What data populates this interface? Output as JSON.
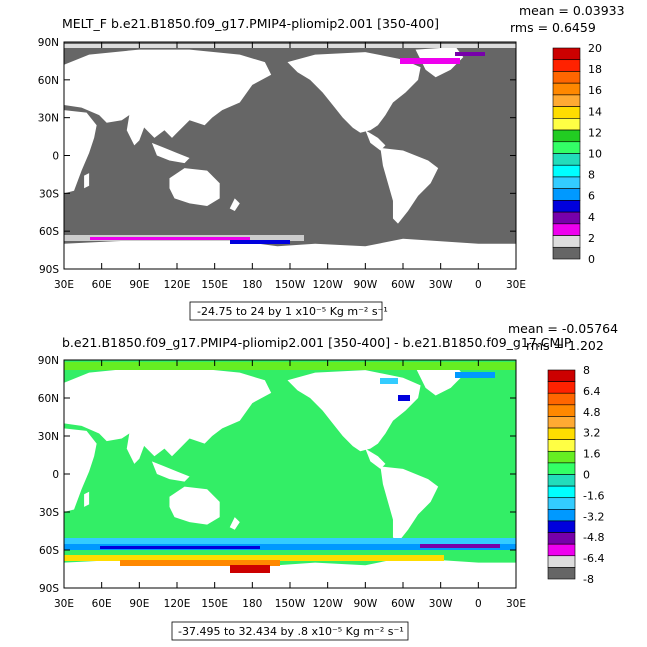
{
  "chart_data": [
    {
      "type": "heatmap",
      "title": "MELT_F b.e21.B1850.f09_g17.PMIP4-pliomip2.001 [350-400]",
      "stats": {
        "mean": "mean = 0.03933",
        "rms": "rms = 0.6459"
      },
      "x_ticks": [
        "30E",
        "60E",
        "90E",
        "120E",
        "150E",
        "180",
        "150W",
        "120W",
        "90W",
        "60W",
        "30W",
        "0",
        "30E"
      ],
      "y_ticks": [
        "90N",
        "60N",
        "30N",
        "0",
        "30S",
        "60S",
        "90S"
      ],
      "colorbar": {
        "labels": [
          "20",
          "18",
          "16",
          "14",
          "12",
          "10",
          "8",
          "6",
          "4",
          "2",
          "0"
        ],
        "colors": [
          "#cc0000",
          "#ff2200",
          "#ff6600",
          "#ff8800",
          "#ffaa33",
          "#ffdd00",
          "#ffff44",
          "#22cc22",
          "#33ff66",
          "#22ddbb",
          "#00ffff",
          "#33ccff",
          "#0099ff",
          "#0000dd",
          "#7700aa",
          "#ee00ee",
          "#dddddd",
          "#666666"
        ]
      },
      "range_label": "-24.75 to 24 by 1 x10⁻⁵ Kg m⁻² s⁻¹"
    },
    {
      "type": "heatmap",
      "title": "b.e21.B1850.f09_g17.PMIP4-pliomip2.001 [350-400] - b.e21.B1850.f09_g17.CMIP",
      "stats": {
        "mean": "mean = -0.05764",
        "rms": "rms = 1.202"
      },
      "x_ticks": [
        "30E",
        "60E",
        "90E",
        "120E",
        "150E",
        "180",
        "150W",
        "120W",
        "90W",
        "60W",
        "30W",
        "0",
        "30E"
      ],
      "y_ticks": [
        "90N",
        "60N",
        "30N",
        "0",
        "30S",
        "60S",
        "90S"
      ],
      "colorbar": {
        "labels": [
          "8",
          "6.4",
          "4.8",
          "3.2",
          "1.6",
          "0",
          "-1.6",
          "-3.2",
          "-4.8",
          "-6.4",
          "-8"
        ],
        "colors": [
          "#cc0000",
          "#ff2200",
          "#ff6600",
          "#ff8800",
          "#ffaa33",
          "#ffdd00",
          "#ffff44",
          "#66ee22",
          "#33ff66",
          "#22ddbb",
          "#00ffff",
          "#33ccff",
          "#0099ff",
          "#0000dd",
          "#7700aa",
          "#ee00ee",
          "#dddddd",
          "#666666"
        ]
      },
      "range_label": "-37.495 to 32.434 by .8 x10⁻⁵ Kg m⁻² s⁻¹"
    }
  ],
  "colors": {
    "land": "#ffffff",
    "ocean_panel1": "#666666",
    "ocean_panel2": "#33ee66"
  }
}
